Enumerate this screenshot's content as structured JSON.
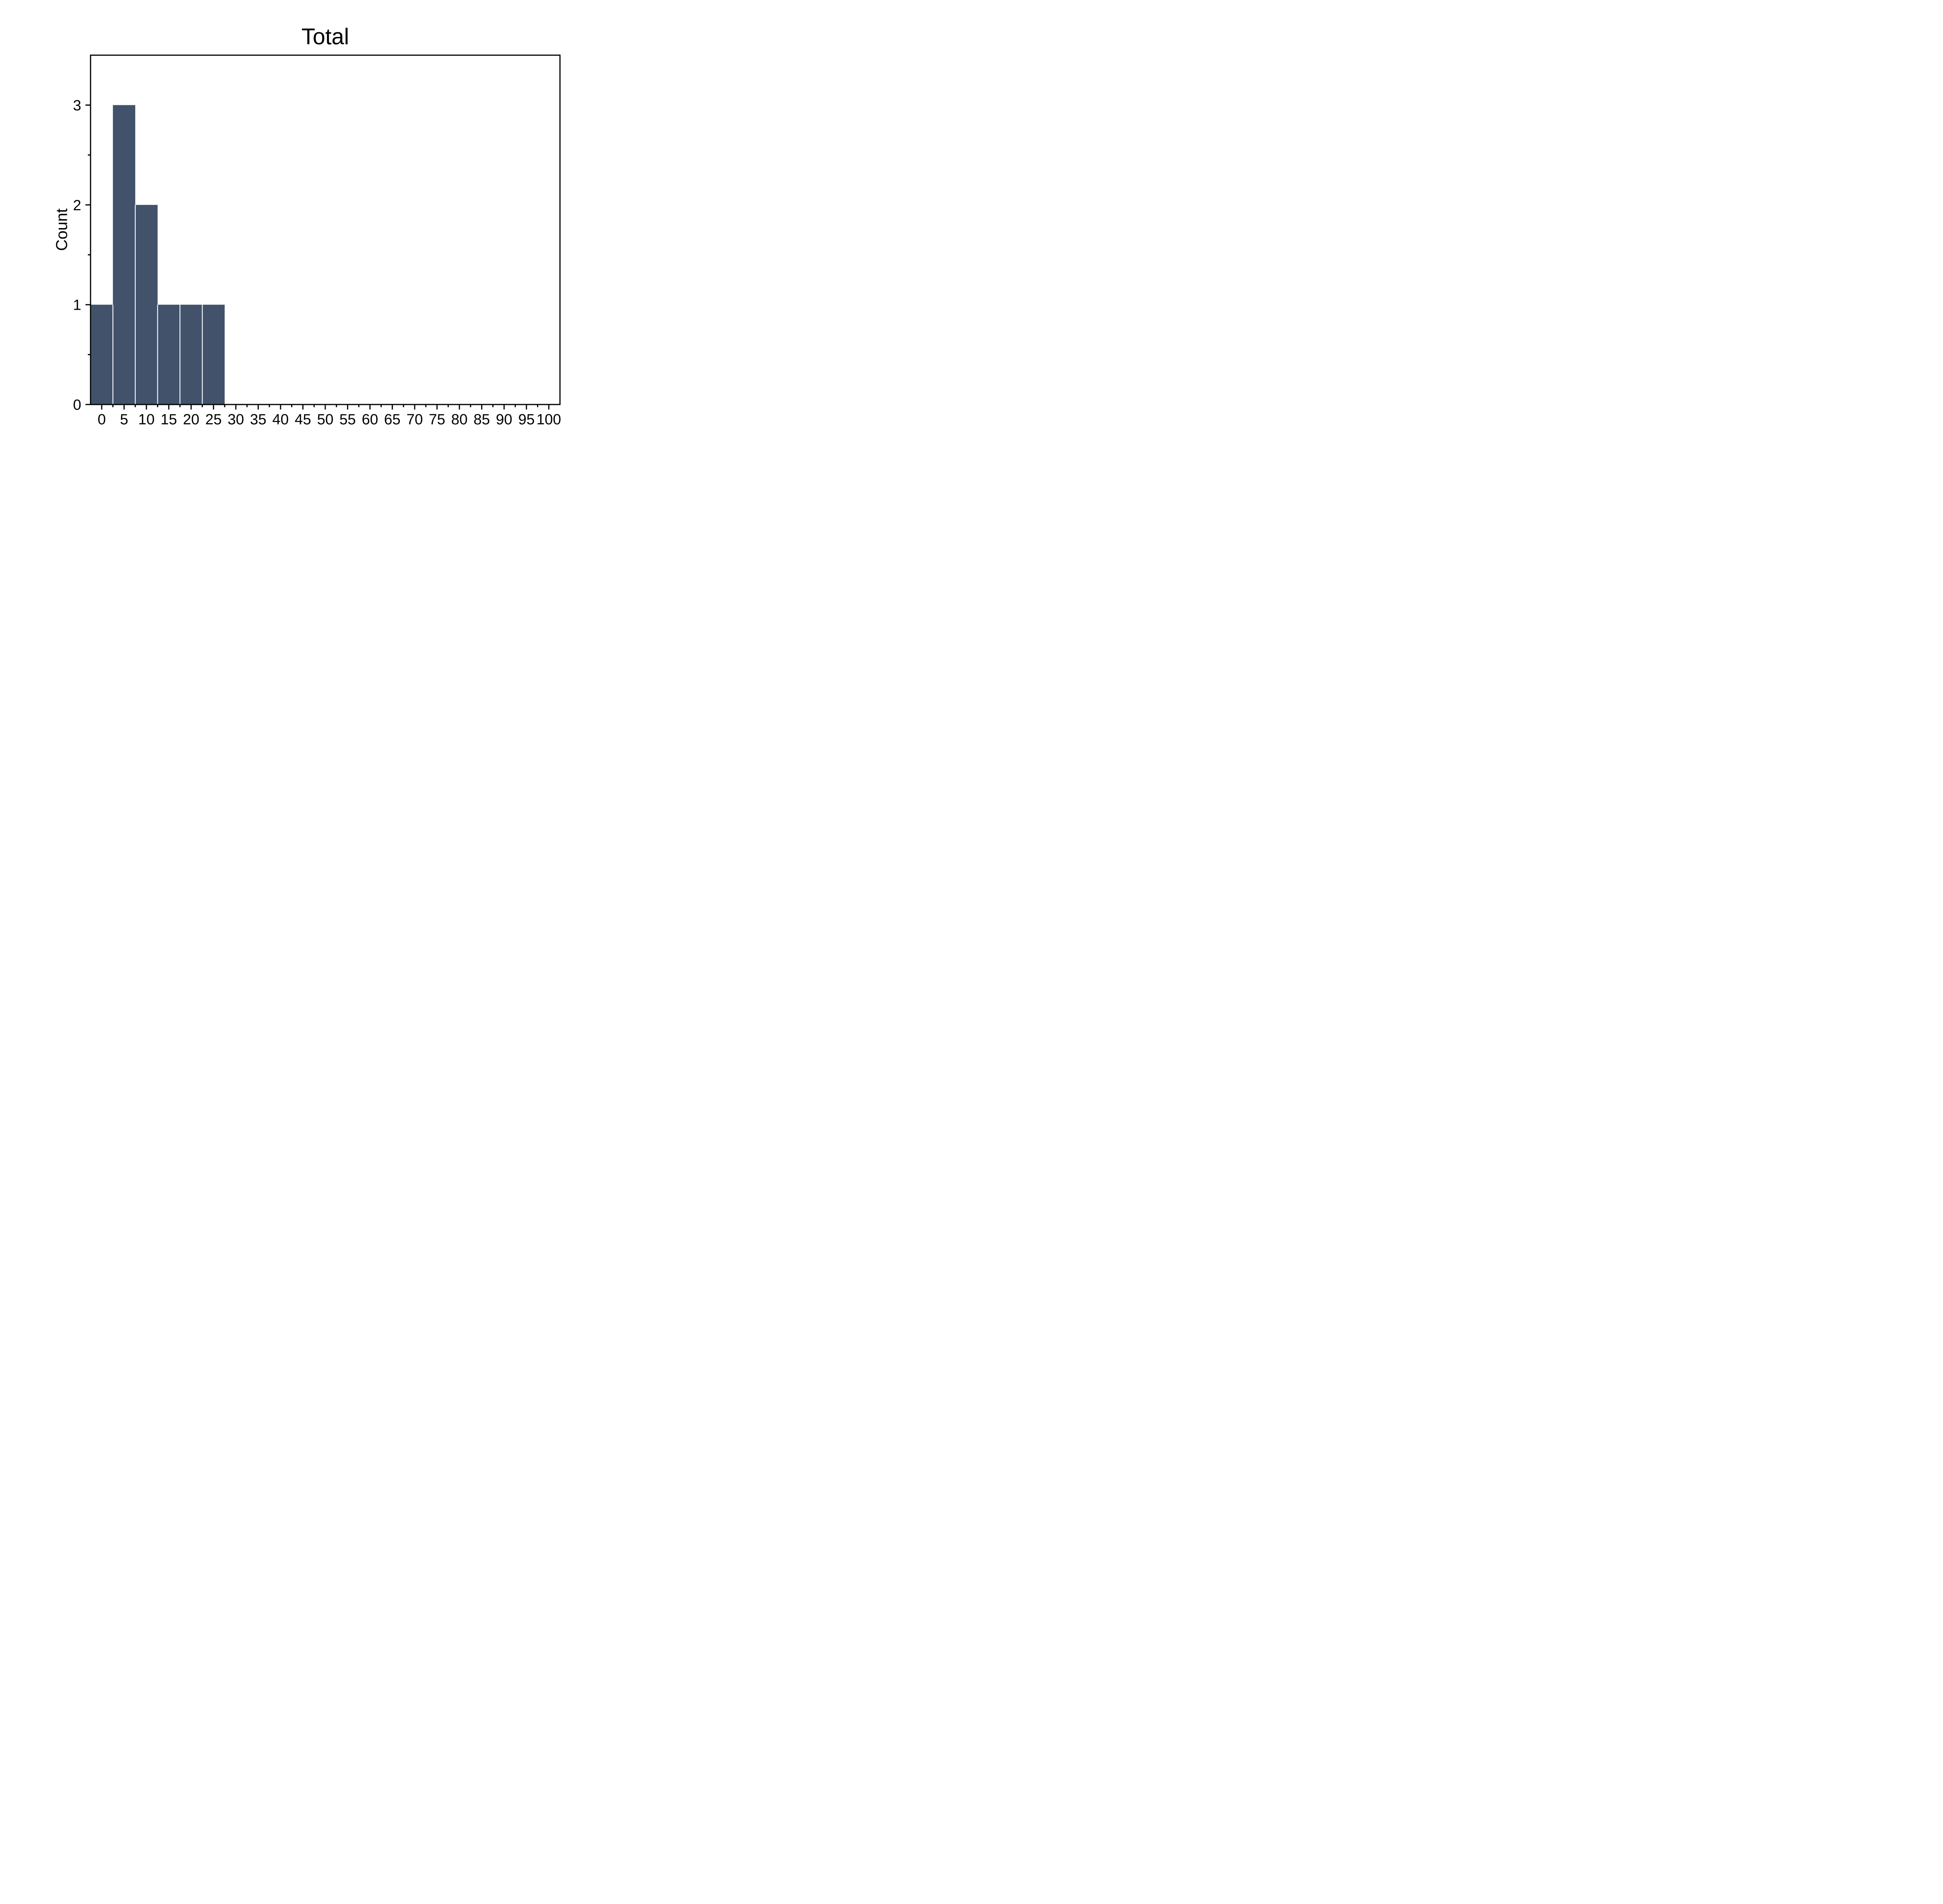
{
  "chart_data": {
    "type": "bar",
    "subtype": "histogram",
    "title": "Total",
    "xlabel": "",
    "ylabel": "Count",
    "bin_centers": [
      0,
      5,
      10,
      15,
      20,
      25
    ],
    "bin_width": 5,
    "values": [
      1,
      3,
      2,
      1,
      1,
      1
    ],
    "xlim": [
      -2.5,
      102.5
    ],
    "ylim": [
      0,
      3.5
    ],
    "x_major_ticks": [
      0,
      5,
      10,
      15,
      20,
      25,
      30,
      35,
      40,
      45,
      50,
      55,
      60,
      65,
      70,
      75,
      80,
      85,
      90,
      95,
      100
    ],
    "x_minor_step": 2.5,
    "y_major_ticks": [
      0,
      1,
      2,
      3
    ],
    "y_minor_step": 0.5,
    "grid": false,
    "legend": false,
    "colors": {
      "bar": "#42526B",
      "axis": "#000000",
      "text": "#000000",
      "background": "#FFFFFF",
      "separator": "#FFFFFF"
    }
  }
}
